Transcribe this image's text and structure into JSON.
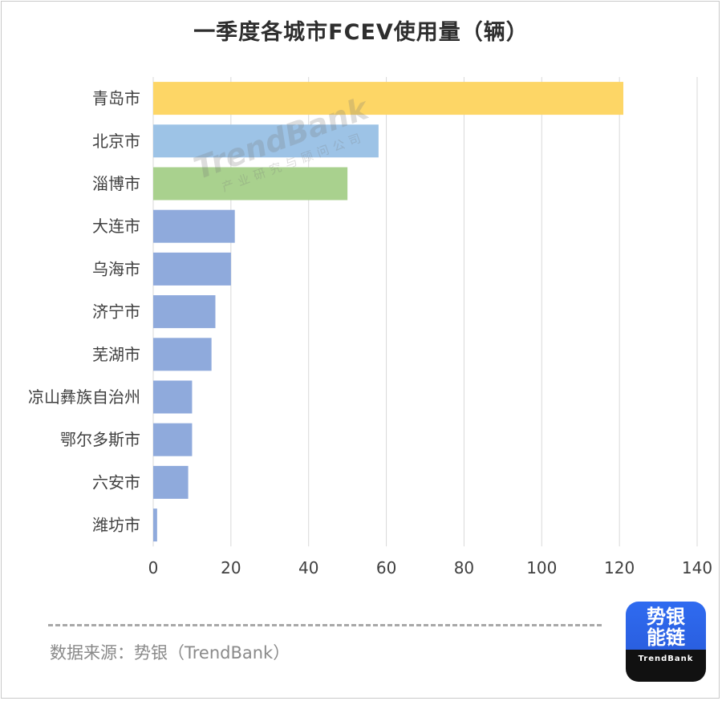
{
  "title": "一季度各城市FCEV使用量（辆）",
  "source_text": "数据来源：势银（TrendBank）",
  "logo": {
    "line1": "势银",
    "line2": "能链",
    "brand": "TrendBank"
  },
  "watermark": {
    "brand": "TrendBank",
    "subtitle": "产业研究与顾问公司"
  },
  "chart_data": {
    "type": "bar",
    "orientation": "horizontal",
    "title": "一季度各城市FCEV使用量（辆）",
    "categories": [
      "青岛市",
      "北京市",
      "淄博市",
      "大连市",
      "乌海市",
      "济宁市",
      "芜湖市",
      "凉山彝族自治州",
      "鄂尔多斯市",
      "六安市",
      "潍坊市"
    ],
    "values": [
      121,
      58,
      50,
      21,
      20,
      16,
      15,
      10,
      10,
      9,
      1
    ],
    "colors": [
      "#fdd666",
      "#9dc3e6",
      "#a9d18e",
      "#8faadc",
      "#8faadc",
      "#8faadc",
      "#8faadc",
      "#8faadc",
      "#8faadc",
      "#8faadc",
      "#8faadc"
    ],
    "xlim": [
      0,
      140
    ],
    "xticks": [
      "0",
      "20",
      "40",
      "60",
      "80",
      "100",
      "120",
      "140"
    ],
    "grid": true,
    "legend": "none"
  }
}
